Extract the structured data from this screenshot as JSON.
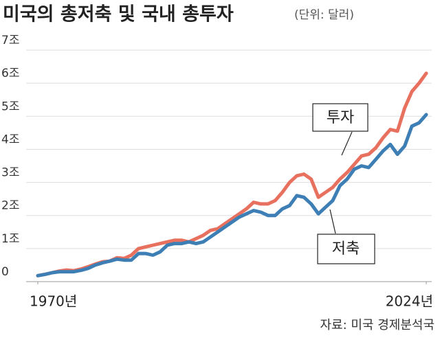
{
  "chart_data": {
    "type": "line",
    "title": "미국의 총저축 및 국내 총투자",
    "subtitle": "(단위: 달러)",
    "source": "자료: 미국 경제분석국",
    "annotations": [
      "투자",
      "저축"
    ],
    "x": [
      1970,
      1971,
      1972,
      1973,
      1974,
      1975,
      1976,
      1977,
      1978,
      1979,
      1980,
      1981,
      1982,
      1983,
      1984,
      1985,
      1986,
      1987,
      1988,
      1989,
      1990,
      1991,
      1992,
      1993,
      1994,
      1995,
      1996,
      1997,
      1998,
      1999,
      2000,
      2001,
      2002,
      2003,
      2004,
      2005,
      2006,
      2007,
      2008,
      2009,
      2010,
      2011,
      2012,
      2013,
      2014,
      2015,
      2016,
      2017,
      2018,
      2019,
      2020,
      2021,
      2022,
      2023,
      2024
    ],
    "series": [
      {
        "name": "투자",
        "color": "#e8705f",
        "values": [
          0.18,
          0.22,
          0.27,
          0.32,
          0.35,
          0.33,
          0.38,
          0.45,
          0.53,
          0.6,
          0.62,
          0.72,
          0.7,
          0.8,
          1.0,
          1.05,
          1.1,
          1.15,
          1.2,
          1.25,
          1.25,
          1.2,
          1.3,
          1.4,
          1.55,
          1.6,
          1.75,
          1.9,
          2.05,
          2.2,
          2.4,
          2.35,
          2.35,
          2.45,
          2.7,
          3.0,
          3.2,
          3.25,
          3.1,
          2.55,
          2.7,
          2.85,
          3.1,
          3.3,
          3.55,
          3.8,
          3.85,
          4.05,
          4.35,
          4.6,
          4.55,
          5.25,
          5.75,
          6.0,
          6.3
        ]
      },
      {
        "name": "저축",
        "color": "#3d7fb5",
        "values": [
          0.18,
          0.22,
          0.27,
          0.3,
          0.3,
          0.3,
          0.34,
          0.4,
          0.5,
          0.57,
          0.62,
          0.68,
          0.65,
          0.65,
          0.85,
          0.85,
          0.8,
          0.9,
          1.1,
          1.15,
          1.15,
          1.2,
          1.15,
          1.2,
          1.35,
          1.5,
          1.65,
          1.8,
          1.95,
          2.05,
          2.15,
          2.1,
          2.0,
          2.0,
          2.2,
          2.3,
          2.6,
          2.55,
          2.35,
          2.05,
          2.25,
          2.45,
          2.9,
          3.1,
          3.4,
          3.5,
          3.45,
          3.7,
          3.95,
          4.15,
          3.85,
          4.1,
          4.7,
          4.8,
          5.05
        ]
      }
    ],
    "xlim": [
      1970,
      2024
    ],
    "xticks": [
      {
        "value": 1970,
        "label": "1970년"
      },
      {
        "value": 2024,
        "label": "2024년"
      }
    ],
    "ylim": [
      0,
      7
    ],
    "yticks": [
      0,
      {
        "value": 1,
        "label": "1조"
      },
      {
        "value": 2,
        "label": "2조"
      },
      {
        "value": 3,
        "label": "3조"
      },
      {
        "value": 4,
        "label": "4조"
      },
      {
        "value": 5,
        "label": "5조"
      },
      {
        "value": 6,
        "label": "6조"
      },
      {
        "value": 7,
        "label": "7조"
      }
    ],
    "grid": true
  }
}
